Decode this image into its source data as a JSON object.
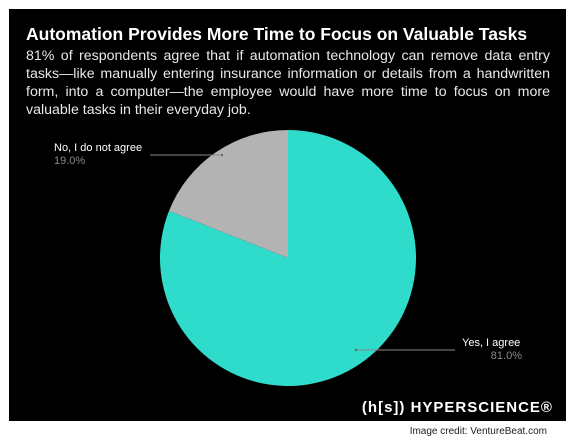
{
  "chart_data": {
    "type": "pie",
    "title": "Automation Provides More Time to Focus on Valuable Tasks",
    "subtitle": "81% of respondents agree that if automation technology can remove data entry tasks—like manually entering insurance information or details from a handwritten form, into a computer—the employee would have more time to focus on more valuable tasks in their everyday job.",
    "categories": [
      "Yes, I agree",
      "No, I do not agree"
    ],
    "values": [
      81.0,
      19.0
    ],
    "value_labels": [
      "81.0%",
      "19.0%"
    ],
    "colors": [
      "#2fdccb",
      "#b3b3b3"
    ],
    "brand": "(h[s]) HYPERSCIENCE®",
    "credit": "Image credit: VentureBeat.com"
  }
}
